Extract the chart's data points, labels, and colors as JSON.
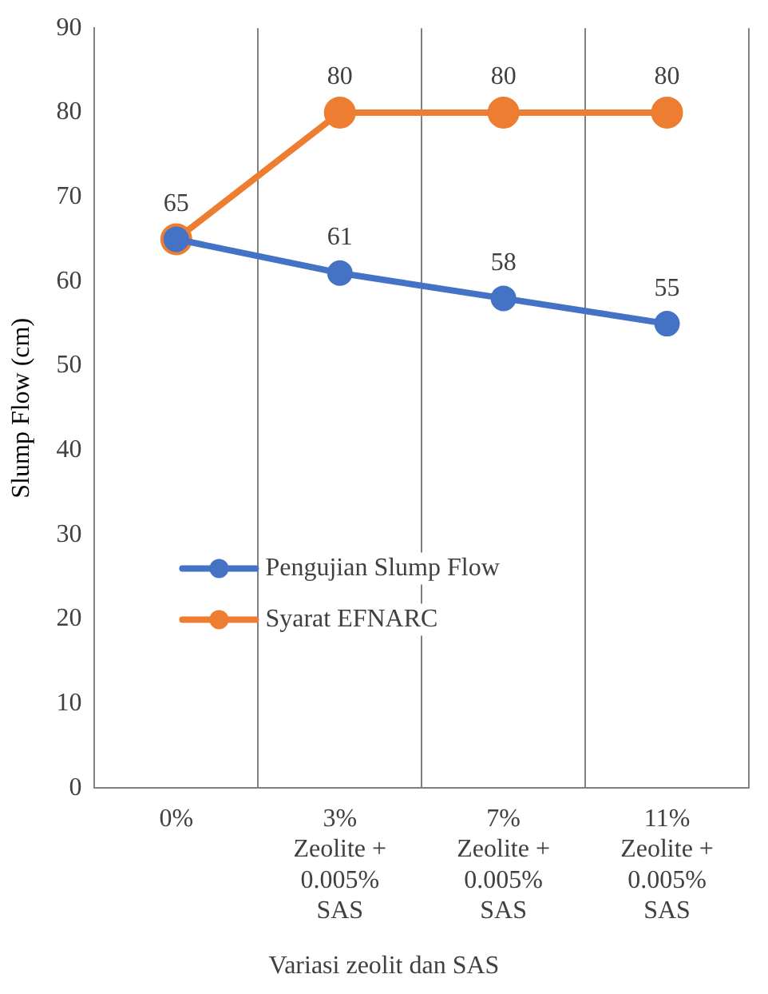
{
  "chart_data": {
    "type": "line",
    "xlabel": "Variasi zeolit dan SAS",
    "ylabel": "Slump Flow (cm)",
    "categories": [
      "0%",
      "3% Zeolite + 0.005% SAS",
      "7% Zeolite + 0.005% SAS",
      "11% Zeolite + 0.005% SAS"
    ],
    "series": [
      {
        "name": "Pengujian Slump Flow",
        "color": "#4472c4",
        "values": [
          65,
          61,
          58,
          55
        ],
        "value_labels": [
          "65",
          "61",
          "58",
          "55"
        ]
      },
      {
        "name": "Syarat EFNARC",
        "color": "#ed7d31",
        "values": [
          65,
          80,
          80,
          80
        ],
        "value_labels": [
          null,
          "80",
          "80",
          "80"
        ]
      }
    ],
    "ylim": [
      0,
      90
    ],
    "yticks": [
      0,
      10,
      20,
      30,
      40,
      50,
      60,
      70,
      80,
      90
    ],
    "grid": "x",
    "legend": "left",
    "marker": "circle"
  }
}
